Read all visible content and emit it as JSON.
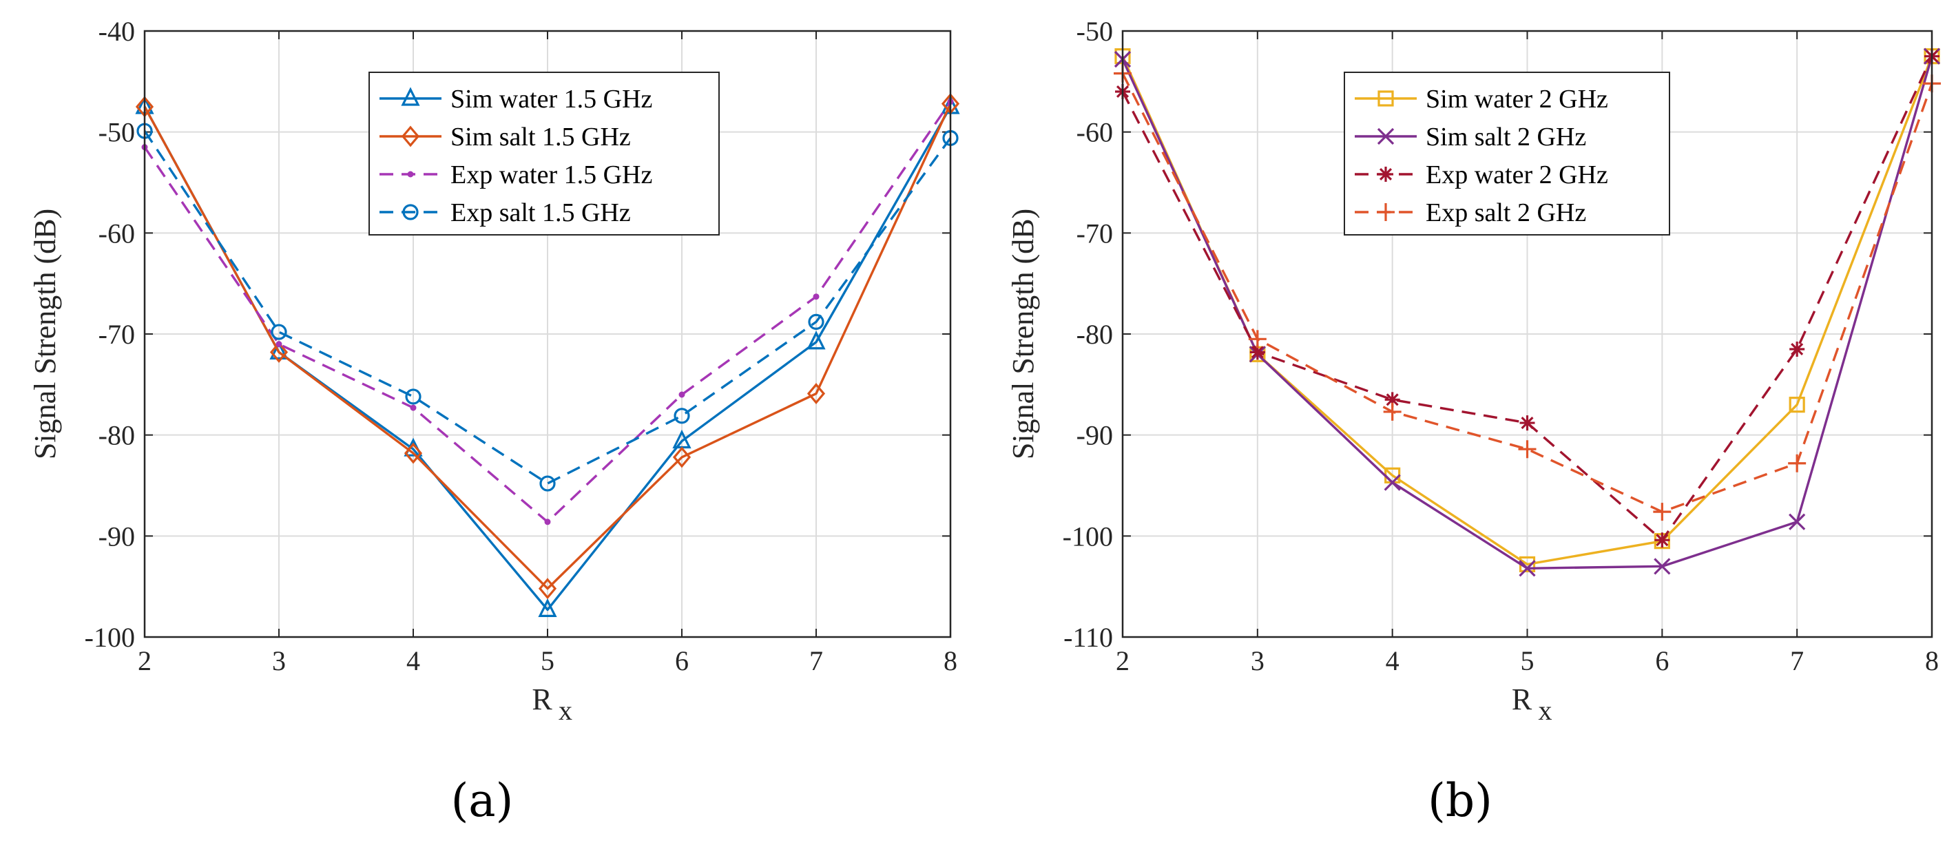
{
  "chart_data": [
    {
      "type": "line",
      "panel_label": "(a)",
      "xlabel": "R",
      "xlabel_sub": "x",
      "ylabel": "Signal Strength (dB)",
      "xlim": [
        2,
        8
      ],
      "ylim": [
        -100,
        -40
      ],
      "xticks": [
        2,
        3,
        4,
        5,
        6,
        7,
        8
      ],
      "yticks": [
        -40,
        -50,
        -60,
        -70,
        -80,
        -90,
        -100
      ],
      "grid": true,
      "legend_position": "top-right",
      "x": [
        2,
        3,
        4,
        5,
        6,
        7,
        8
      ],
      "series": [
        {
          "name": "Sim water 1.5 GHz",
          "color": "#0072BD",
          "dash": "solid",
          "marker": "triangle",
          "values": [
            -47.5,
            -71.8,
            -81.4,
            -97.3,
            -80.6,
            -70.8,
            -47.5
          ]
        },
        {
          "name": "Sim salt 1.5 GHz",
          "color": "#D95319",
          "dash": "solid",
          "marker": "diamond",
          "values": [
            -47.5,
            -71.8,
            -81.8,
            -95.2,
            -82.2,
            -75.9,
            -47.2
          ]
        },
        {
          "name": "Exp water 1.5 GHz",
          "color": "#A636B5",
          "dash": "dashed",
          "marker": "point",
          "values": [
            -51.5,
            -71.0,
            -77.3,
            -88.6,
            -76.0,
            -66.3,
            -47.0
          ]
        },
        {
          "name": "Exp salt 1.5 GHz",
          "color": "#0072BD",
          "dash": "dashed",
          "marker": "circle",
          "values": [
            -49.9,
            -69.8,
            -76.2,
            -84.8,
            -78.1,
            -68.8,
            -50.6
          ]
        }
      ]
    },
    {
      "type": "line",
      "panel_label": "(b)",
      "xlabel": "R",
      "xlabel_sub": "x",
      "ylabel": "Signal Strength (dB)",
      "xlim": [
        2,
        8
      ],
      "ylim": [
        -110,
        -50
      ],
      "xticks": [
        2,
        3,
        4,
        5,
        6,
        7,
        8
      ],
      "yticks": [
        -50,
        -60,
        -70,
        -80,
        -90,
        -100,
        -110
      ],
      "grid": true,
      "legend_position": "top-right",
      "x": [
        2,
        3,
        4,
        5,
        6,
        7,
        8
      ],
      "series": [
        {
          "name": "Sim water 2 GHz",
          "color": "#EDB120",
          "dash": "solid",
          "marker": "square",
          "values": [
            -52.5,
            -82.0,
            -94.0,
            -102.8,
            -100.5,
            -87.0,
            -52.5
          ]
        },
        {
          "name": "Sim salt 2 GHz",
          "color": "#7E2F8E",
          "dash": "solid",
          "marker": "x",
          "values": [
            -52.8,
            -82.0,
            -94.7,
            -103.2,
            -103.0,
            -98.6,
            -52.5
          ]
        },
        {
          "name": "Exp water 2 GHz",
          "color": "#A2142F",
          "dash": "dashed",
          "marker": "asterisk",
          "values": [
            -56.0,
            -81.8,
            -86.5,
            -88.8,
            -100.4,
            -81.5,
            -52.5
          ]
        },
        {
          "name": "Exp salt 2 GHz",
          "color": "#E0542A",
          "dash": "dashed",
          "marker": "plus",
          "values": [
            -54.2,
            -80.5,
            -87.7,
            -91.4,
            -97.6,
            -92.8,
            -55.2
          ]
        }
      ]
    }
  ]
}
